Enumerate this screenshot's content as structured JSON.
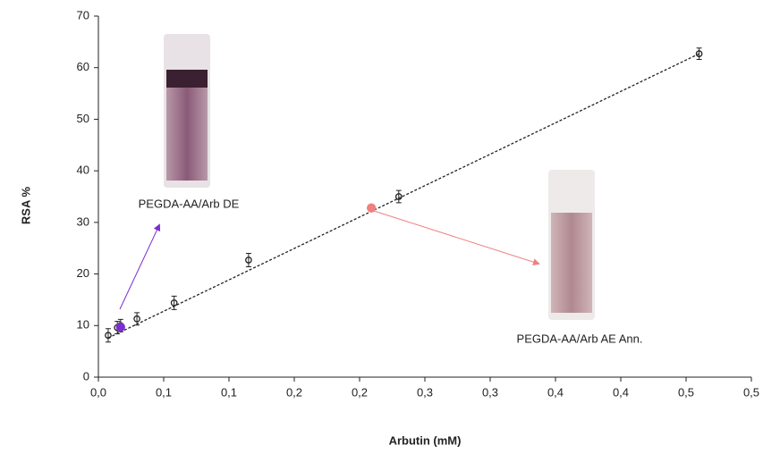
{
  "chart_data": {
    "type": "scatter",
    "xlabel": "Arbutin (mM)",
    "ylabel": "RSA %",
    "xlim": [
      0,
      0.5
    ],
    "ylim": [
      0,
      70
    ],
    "xticks": [
      {
        "value": 0,
        "label": "0,0"
      },
      {
        "value": 0.05,
        "label": "0,1"
      },
      {
        "value": 0.1,
        "label": "0,1"
      },
      {
        "value": 0.15,
        "label": "0,2"
      },
      {
        "value": 0.2,
        "label": "0,2"
      },
      {
        "value": 0.25,
        "label": "0,3"
      },
      {
        "value": 0.3,
        "label": "0,3"
      },
      {
        "value": 0.35,
        "label": "0,4"
      },
      {
        "value": 0.4,
        "label": "0,4"
      },
      {
        "value": 0.45,
        "label": "0,5"
      },
      {
        "value": 0.5,
        "label": "0,5"
      }
    ],
    "yticks": [
      0,
      10,
      20,
      30,
      40,
      50,
      60,
      70
    ],
    "series": [
      {
        "color": "#222222",
        "x": [
          0.0075,
          0.0145,
          0.017,
          0.0295,
          0.058,
          0.115,
          0.23,
          0.46
        ],
        "values": [
          8.1,
          9.6,
          10,
          11.3,
          14.4,
          22.7,
          35,
          62.7
        ],
        "errors": [
          1.3,
          1.2,
          1.2,
          1.2,
          1.3,
          1.3,
          1.2,
          1.1
        ]
      },
      {
        "color": "#7b2fd0",
        "x": [
          0.017
        ],
        "values": [
          9.7
        ]
      },
      {
        "color": "#f08080",
        "x": [
          0.209
        ],
        "values": [
          32.8
        ]
      }
    ],
    "trendline": {
      "x": [
        0.0075,
        0.46
      ],
      "values": [
        7.6,
        62.7
      ]
    },
    "annotations": [
      "PEGDA-AA/Arb DE",
      "PEGDA-AA/Arb AE Ann."
    ]
  }
}
